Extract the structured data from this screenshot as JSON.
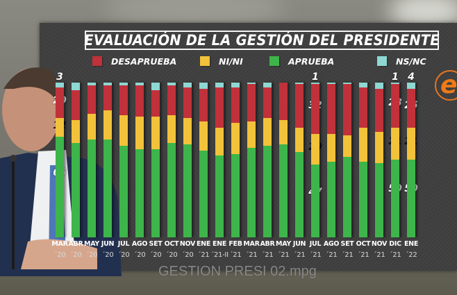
{
  "title": "EVALUACIÓN DE LA GESTIÓN DEL PRESIDENTE",
  "legend": [
    {
      "label": "DESAPRUEBA",
      "color": "#c0313a"
    },
    {
      "label": "NI/NI",
      "color": "#f2c23a"
    },
    {
      "label": "APRUEBA",
      "color": "#3db54a"
    },
    {
      "label": "NS/NC",
      "color": "#8fd7d2"
    }
  ],
  "watermark": "GESTION PRESI 02.mpg",
  "logo": {
    "glyph": "e",
    "color": "#f07a16"
  },
  "chart_data": {
    "type": "bar",
    "stacked": true,
    "title": "EVALUACIÓN DE LA GESTIÓN DEL PRESIDENTE",
    "xlabel": "",
    "ylabel": "",
    "ylim": [
      0,
      100
    ],
    "legend_position": "top",
    "grid": false,
    "categories": [
      "MAR '20",
      "ABR '20",
      "MAY '20",
      "JUN '20",
      "JUL '20",
      "AGO '20",
      "SET '20",
      "OCT '20",
      "NOV '20",
      "ENE '21",
      "ENE '21-II",
      "FEB '21",
      "MAR '21",
      "ABR '21",
      "MAY '21",
      "JUN '21",
      "JUL '21",
      "AGO '21",
      "SET '21",
      "OCT '21",
      "NOV '21",
      "DIC '21",
      "ENE '22"
    ],
    "month_labels": [
      "MAR",
      "ABR",
      "MAY",
      "JUN",
      "JUL",
      "AGO",
      "SET",
      "OCT",
      "NOV",
      "ENE",
      "ENE",
      "FEB",
      "MAR",
      "ABR",
      "MAY",
      "JUN",
      "JUL",
      "AGO",
      "SET",
      "OCT",
      "NOV",
      "DIC",
      "ENE"
    ],
    "year_labels": [
      "´20",
      "´20",
      "´20",
      "´20",
      "´20",
      "´20",
      "´20",
      "´20",
      "´20",
      "´21",
      "´21-II",
      "´21",
      "´21",
      "´21",
      "´21",
      "´21",
      "´21",
      "´21",
      "´21",
      "´21",
      "´21",
      "´21",
      "´22"
    ],
    "series": [
      {
        "name": "APRUEBA",
        "color": "#3db54a",
        "values": [
          65,
          61,
          63,
          63,
          59,
          57,
          57,
          61,
          60,
          56,
          53,
          54,
          58,
          59,
          60,
          55,
          47,
          49,
          52,
          49,
          48,
          50,
          50
        ]
      },
      {
        "name": "NI/NI",
        "color": "#f2c23a",
        "values": [
          12,
          15,
          17,
          19,
          20,
          21,
          21,
          18,
          17,
          19,
          18,
          20,
          17,
          18,
          16,
          16,
          20,
          18,
          14,
          22,
          20,
          21,
          21
        ]
      },
      {
        "name": "DESAPRUEBA",
        "color": "#c0313a",
        "values": [
          20,
          19,
          18,
          16,
          19,
          20,
          17,
          19,
          20,
          21,
          26,
          23,
          24,
          20,
          24,
          28,
          32,
          32,
          33,
          26,
          28,
          28,
          25
        ]
      },
      {
        "name": "NS/NC",
        "color": "#8fd7d2",
        "values": [
          3,
          5,
          2,
          2,
          2,
          2,
          5,
          2,
          3,
          4,
          3,
          3,
          1,
          3,
          0,
          1,
          1,
          1,
          1,
          3,
          4,
          1,
          4
        ]
      }
    ],
    "data_labels": [
      {
        "index": 0,
        "NS/NC": 3,
        "DESAPRUEBA": 20,
        "NI/NI": 12,
        "APRUEBA": 65
      },
      {
        "index": 16,
        "NS/NC": 1,
        "DESAPRUEBA": 32,
        "NI/NI": 20,
        "APRUEBA": 47
      },
      {
        "index": 21,
        "NS/NC": 1,
        "DESAPRUEBA": 28,
        "NI/NI": 21,
        "APRUEBA": 50
      },
      {
        "index": 22,
        "NS/NC": 4,
        "DESAPRUEBA": 25,
        "NI/NI": 21,
        "APRUEBA": 50
      }
    ]
  }
}
